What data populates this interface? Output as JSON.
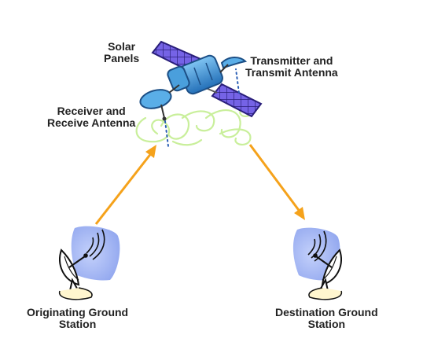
{
  "labels": {
    "solar_panels": [
      "Solar",
      "Panels"
    ],
    "transmitter": [
      "Transmitter and",
      "Transmit Antenna"
    ],
    "receiver": [
      "Receiver and",
      "Receive Antenna"
    ],
    "originating": [
      "Originating Ground",
      "Station"
    ],
    "destination": [
      "Destination Ground",
      "Station"
    ]
  },
  "colors": {
    "arrow": "#f5a21b",
    "solar_panel": "#7060e0",
    "satellite_body": "#3a8fd0",
    "radio_waves": "#c8ef9a",
    "dish_background": "#9bb0f0",
    "beam_dots": "#2b5fb5"
  }
}
